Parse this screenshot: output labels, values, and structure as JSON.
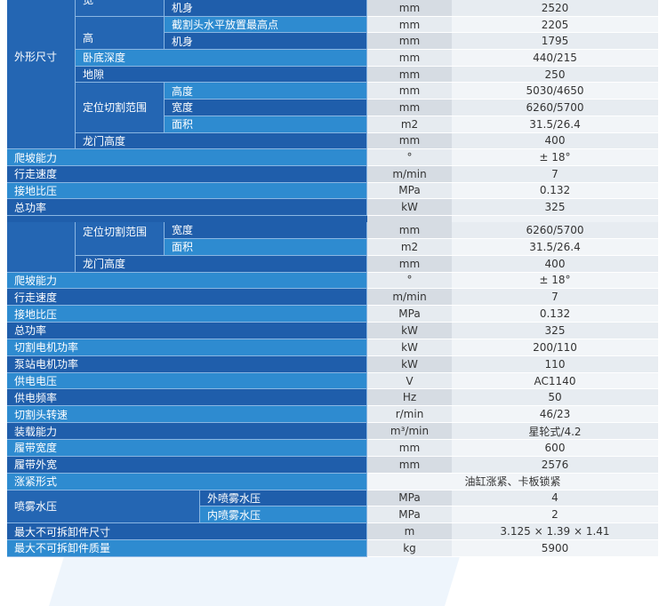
{
  "colors": {
    "dark_blue": "#1f5eab",
    "light_blue": "#2e8bd0",
    "unit_bg": "#d6dce3",
    "value_bg": "#e7ecf1"
  },
  "frag1": {
    "group": "外形尺寸",
    "wide": "宽",
    "body1": "机身",
    "u0": "mm",
    "v0": "2520",
    "high": "高",
    "cut_top": "截割头水平放置最高点",
    "u1": "mm",
    "v1": "2205",
    "body2": "机身",
    "u2": "mm",
    "v2": "1795",
    "depth": "卧底深度",
    "u3": "mm",
    "v3": "440/215",
    "clear": "地隙",
    "u4": "mm",
    "v4": "250",
    "range": "定位切割范围",
    "h": "高度",
    "u5": "mm",
    "v5": "5030/4650",
    "w": "宽度",
    "u6": "mm",
    "v6": "6260/5700",
    "a": "面积",
    "u7": "m2",
    "v7": "31.5/26.4",
    "gantry": "龙门高度",
    "u8": "mm",
    "v8": "400",
    "climb": "爬坡能力",
    "u9": "°",
    "v9": "± 18°",
    "speed": "行走速度",
    "u10": "m/min",
    "v10": "7",
    "press": "接地比压",
    "u11": "MPa",
    "v11": "0.132",
    "power": "总功率",
    "u12": "kW",
    "v12": "325"
  },
  "frag2": {
    "range": "定位切割范围",
    "rows": [
      {
        "label": "宽度",
        "unit": "mm",
        "value": "6260/5700"
      },
      {
        "label": "面积",
        "unit": "m2",
        "value": "31.5/26.4"
      },
      {
        "label": "龙门高度",
        "unit": "mm",
        "value": "400"
      },
      {
        "label": "爬坡能力",
        "unit": "°",
        "value": "± 18°"
      },
      {
        "label": "行走速度",
        "unit": "m/min",
        "value": "7"
      },
      {
        "label": "接地比压",
        "unit": "MPa",
        "value": "0.132"
      },
      {
        "label": "总功率",
        "unit": "kW",
        "value": "325"
      },
      {
        "label": "切割电机功率",
        "unit": "kW",
        "value": "200/110"
      },
      {
        "label": "泵站电机功率",
        "unit": "kW",
        "value": "110"
      },
      {
        "label": "供电电压",
        "unit": "V",
        "value": "AC1140"
      },
      {
        "label": "供电频率",
        "unit": "Hz",
        "value": "50"
      },
      {
        "label": "切割头转速",
        "unit": "r/min",
        "value": "46/23"
      },
      {
        "label": "装载能力",
        "unit": "m³/min",
        "value": "星轮式/4.2"
      },
      {
        "label": "履带宽度",
        "unit": "mm",
        "value": "600"
      },
      {
        "label": "履带外宽",
        "unit": "mm",
        "value": "2576"
      },
      {
        "label": "涨紧形式",
        "value": "油缸涨紧、卡板锁紧"
      },
      {
        "label": "外喷雾水压",
        "unit": "MPa",
        "value": "4"
      },
      {
        "label": "内喷雾水压",
        "unit": "MPa",
        "value": "2"
      },
      {
        "label": "最大不可拆卸件尺寸",
        "unit": "m",
        "value": "3.125 × 1.39 × 1.41"
      },
      {
        "label": "最大不可拆卸件质量",
        "unit": "kg",
        "value": "5900"
      }
    ],
    "spray": "喷雾水压"
  }
}
